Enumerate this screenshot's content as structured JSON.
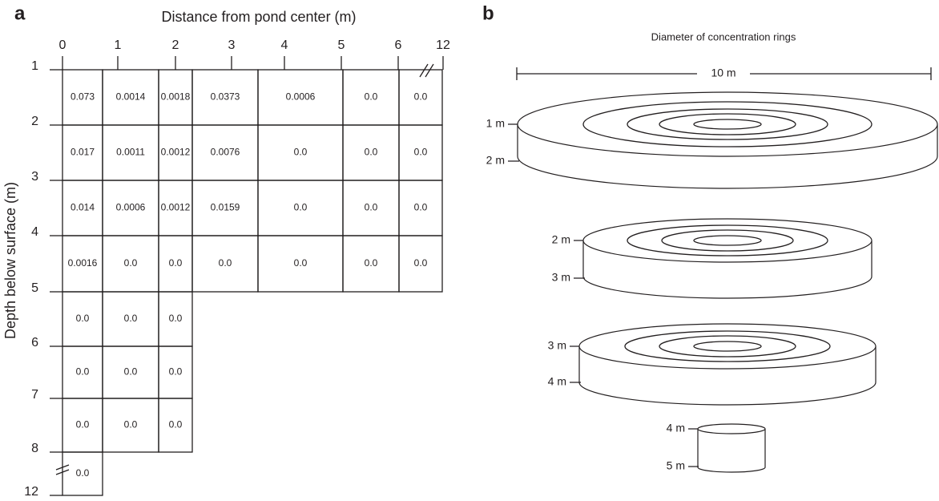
{
  "panel_a": {
    "label": "a",
    "x_axis_title": "Distance from pond center (m)",
    "y_axis_title": "Depth below surface (m)",
    "x_ticks": [
      "0",
      "1",
      "2",
      "3",
      "4",
      "5",
      "6",
      "12"
    ],
    "y_ticks": [
      "1",
      "2",
      "3",
      "4",
      "5",
      "6",
      "7",
      "8",
      "12"
    ],
    "rows": [
      [
        "0.073",
        "0.0014",
        "0.0018",
        "0.0373",
        "0.0006",
        "0.0",
        "0.0"
      ],
      [
        "0.017",
        "0.0011",
        "0.0012",
        "0.0076",
        "0.0",
        "0.0",
        "0.0"
      ],
      [
        "0.014",
        "0.0006",
        "0.0012",
        "0.0159",
        "0.0",
        "0.0",
        "0.0"
      ],
      [
        "0.0016",
        "0.0",
        "0.0",
        "0.0",
        "0.0",
        "0.0",
        "0.0"
      ],
      [
        "0.0",
        "0.0",
        "0.0"
      ],
      [
        "0.0",
        "0.0",
        "0.0"
      ],
      [
        "0.0",
        "0.0",
        "0.0"
      ],
      [
        "0.0"
      ]
    ]
  },
  "panel_b": {
    "label": "b",
    "title": "Diameter of concentration rings",
    "diameter": "10 m",
    "discs": [
      {
        "top": "1 m",
        "bottom": "2 m"
      },
      {
        "top": "2 m",
        "bottom": "3 m"
      },
      {
        "top": "3 m",
        "bottom": "4 m"
      },
      {
        "top": "4 m",
        "bottom": "5 m"
      }
    ]
  }
}
